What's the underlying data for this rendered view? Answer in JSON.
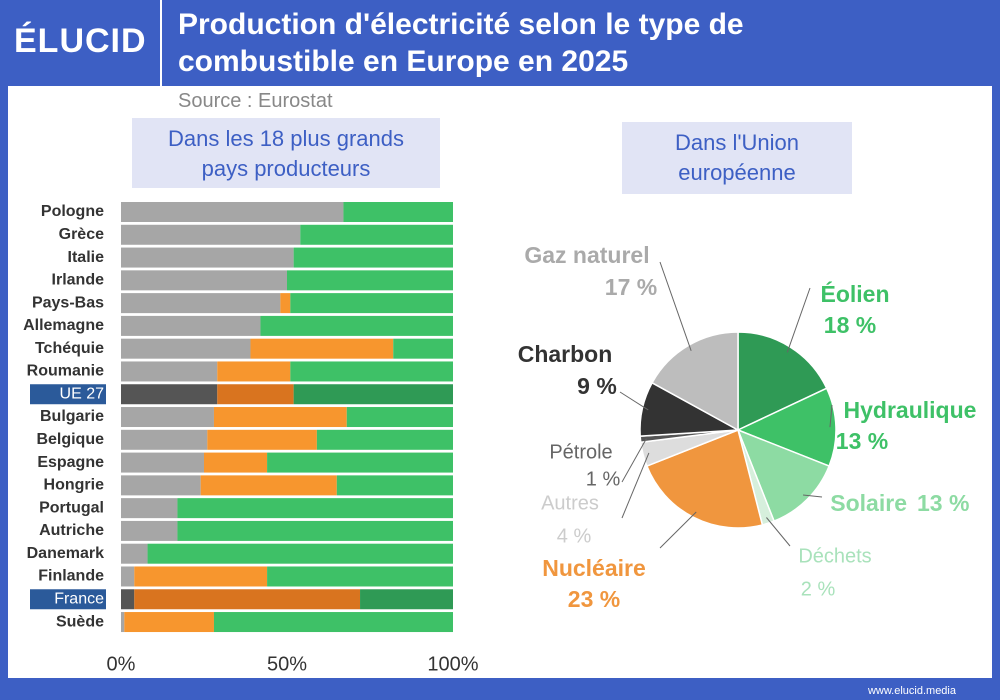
{
  "header": {
    "logo": "ÉLUCID",
    "title": "Production d'électricité selon le type de combustible en Europe en 2025",
    "source": "Source : Eurostat"
  },
  "footer": {
    "site": "www.elucid.media"
  },
  "chart_data": [
    {
      "type": "stacked-barh",
      "subtitle": "Dans les 18 plus grands pays producteurs",
      "categories": [
        "Pologne",
        "Grèce",
        "Italie",
        "Irlande",
        "Pays-Bas",
        "Allemagne",
        "Tchéquie",
        "Roumanie",
        "UE 27",
        "Bulgarie",
        "Belgique",
        "Espagne",
        "Hongrie",
        "Portugal",
        "Autriche",
        "Danemark",
        "Finlande",
        "France",
        "Suède"
      ],
      "highlighted": [
        8,
        17
      ],
      "series": [
        {
          "color": "#a6a6a6",
          "highlight_color": "#555555",
          "values": [
            67,
            54,
            52,
            50,
            48,
            42,
            39,
            29,
            29,
            28,
            26,
            25,
            24,
            17,
            17,
            8,
            4,
            4,
            1
          ]
        },
        {
          "color": "#f7962e",
          "highlight_color": "#d9741f",
          "values": [
            0,
            0,
            0,
            0,
            3,
            0,
            43,
            22,
            23,
            40,
            33,
            19,
            41,
            0,
            0,
            0,
            40,
            68,
            27
          ]
        },
        {
          "color": "#3ec167",
          "highlight_color": "#2f9a55",
          "values": [
            33,
            46,
            48,
            50,
            49,
            58,
            18,
            49,
            48,
            32,
            41,
            56,
            35,
            83,
            83,
            92,
            56,
            28,
            72
          ]
        }
      ],
      "xlim": [
        0,
        100
      ],
      "xticks": [
        {
          "value": 0,
          "label": "0%"
        },
        {
          "value": 50,
          "label": "50%"
        },
        {
          "value": 100,
          "label": "100%"
        }
      ]
    },
    {
      "type": "pie",
      "subtitle": "Dans l'Union européenne",
      "categories": [
        "Éolien",
        "Hydraulique",
        "Solaire",
        "Déchets",
        "Nucléaire",
        "Autres",
        "Pétrole",
        "Charbon",
        "Gaz naturel"
      ],
      "values": [
        18,
        13,
        13,
        2,
        23,
        4,
        1,
        9,
        17
      ],
      "value_labels": [
        "18 %",
        "13 %",
        "13 %",
        "2 %",
        "23 %",
        "4 %",
        "1 %",
        "9 %",
        "17 %"
      ],
      "colors": [
        "#2f9a55",
        "#3ec167",
        "#8ddba3",
        "#d6efdc",
        "#f0963e",
        "#dddddd",
        "#555555",
        "#333333",
        "#bdbdbd"
      ],
      "label_colors": [
        "#3ec167",
        "#3ec167",
        "#8ddba3",
        "#a9e2bb",
        "#f0963e",
        "#cccccc",
        "#666666",
        "#333333",
        "#aaaaaa"
      ]
    }
  ]
}
